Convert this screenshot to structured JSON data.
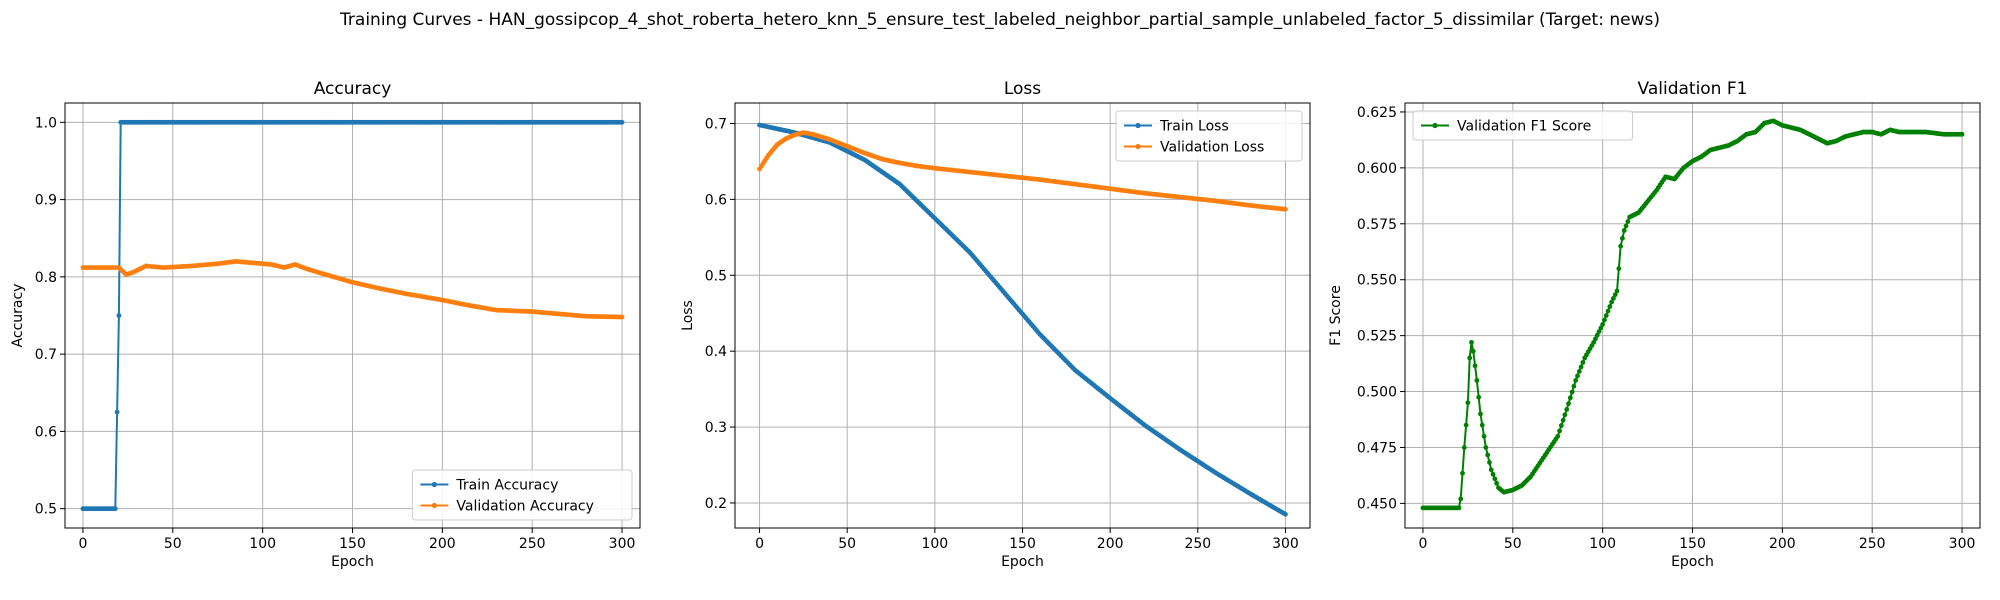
{
  "figure": {
    "suptitle": "Training Curves - HAN_gossipcop_4_shot_roberta_hetero_knn_5_ensure_test_labeled_neighbor_partial_sample_unlabeled_factor_5_dissimilar (Target: news)"
  },
  "colors": {
    "blue": "#1f77b4",
    "orange": "#ff7f0e",
    "green": "#008000",
    "grid": "#b0b0b0"
  },
  "chart_data": [
    {
      "type": "line",
      "title": "Accuracy",
      "xlabel": "Epoch",
      "ylabel": "Accuracy",
      "xlim": [
        -10,
        310
      ],
      "ylim": [
        0.475,
        1.025
      ],
      "xticks": [
        0,
        50,
        100,
        150,
        200,
        250,
        300
      ],
      "yticks": [
        0.5,
        0.6,
        0.7,
        0.8,
        0.9,
        1.0
      ],
      "ytick_labels": [
        "0.5",
        "0.6",
        "0.7",
        "0.8",
        "0.9",
        "1.0"
      ],
      "grid": true,
      "legend": "lower right",
      "series": [
        {
          "name": "Train Accuracy",
          "color": "#1f77b4",
          "points": [
            [
              0,
              0.5
            ],
            [
              18,
              0.5
            ],
            [
              19,
              0.625
            ],
            [
              20,
              0.75
            ],
            [
              21,
              1.0
            ],
            [
              300,
              1.0
            ]
          ]
        },
        {
          "name": "Validation Accuracy",
          "color": "#ff7f0e",
          "points": [
            [
              0,
              0.812
            ],
            [
              20,
              0.812
            ],
            [
              24,
              0.803
            ],
            [
              28,
              0.806
            ],
            [
              35,
              0.814
            ],
            [
              45,
              0.812
            ],
            [
              60,
              0.814
            ],
            [
              75,
              0.817
            ],
            [
              85,
              0.82
            ],
            [
              95,
              0.818
            ],
            [
              105,
              0.816
            ],
            [
              112,
              0.812
            ],
            [
              118,
              0.816
            ],
            [
              125,
              0.81
            ],
            [
              135,
              0.803
            ],
            [
              150,
              0.793
            ],
            [
              165,
              0.785
            ],
            [
              180,
              0.778
            ],
            [
              200,
              0.77
            ],
            [
              215,
              0.763
            ],
            [
              230,
              0.757
            ],
            [
              250,
              0.755
            ],
            [
              265,
              0.752
            ],
            [
              280,
              0.749
            ],
            [
              300,
              0.748
            ]
          ]
        }
      ]
    },
    {
      "type": "line",
      "title": "Loss",
      "xlabel": "Epoch",
      "ylabel": "Loss",
      "xlim": [
        -14,
        314
      ],
      "ylim": [
        0.167,
        0.727
      ],
      "xticks": [
        0,
        50,
        100,
        150,
        200,
        250,
        300
      ],
      "yticks": [
        0.2,
        0.3,
        0.4,
        0.5,
        0.6,
        0.7
      ],
      "ytick_labels": [
        "0.2",
        "0.3",
        "0.4",
        "0.5",
        "0.6",
        "0.7"
      ],
      "grid": true,
      "legend": "upper right",
      "series": [
        {
          "name": "Train Loss",
          "color": "#1f77b4",
          "points": [
            [
              0,
              0.698
            ],
            [
              20,
              0.688
            ],
            [
              40,
              0.675
            ],
            [
              60,
              0.652
            ],
            [
              80,
              0.62
            ],
            [
              100,
              0.575
            ],
            [
              120,
              0.53
            ],
            [
              140,
              0.476
            ],
            [
              160,
              0.422
            ],
            [
              180,
              0.375
            ],
            [
              200,
              0.338
            ],
            [
              220,
              0.302
            ],
            [
              240,
              0.27
            ],
            [
              260,
              0.24
            ],
            [
              280,
              0.212
            ],
            [
              300,
              0.185
            ]
          ]
        },
        {
          "name": "Validation Loss",
          "color": "#ff7f0e",
          "points": [
            [
              0,
              0.64
            ],
            [
              5,
              0.658
            ],
            [
              10,
              0.672
            ],
            [
              15,
              0.68
            ],
            [
              20,
              0.685
            ],
            [
              25,
              0.688
            ],
            [
              30,
              0.686
            ],
            [
              40,
              0.679
            ],
            [
              50,
              0.67
            ],
            [
              60,
              0.661
            ],
            [
              70,
              0.653
            ],
            [
              80,
              0.648
            ],
            [
              90,
              0.644
            ],
            [
              100,
              0.641
            ],
            [
              120,
              0.636
            ],
            [
              140,
              0.631
            ],
            [
              160,
              0.626
            ],
            [
              180,
              0.62
            ],
            [
              200,
              0.614
            ],
            [
              220,
              0.608
            ],
            [
              240,
              0.603
            ],
            [
              260,
              0.598
            ],
            [
              280,
              0.592
            ],
            [
              300,
              0.587
            ]
          ]
        }
      ]
    },
    {
      "type": "line",
      "title": "Validation F1",
      "xlabel": "Epoch",
      "ylabel": "F1 Score",
      "xlim": [
        -10,
        310
      ],
      "ylim": [
        0.439,
        0.629
      ],
      "xticks": [
        0,
        50,
        100,
        150,
        200,
        250,
        300
      ],
      "yticks": [
        0.45,
        0.475,
        0.5,
        0.525,
        0.55,
        0.575,
        0.6,
        0.625
      ],
      "ytick_labels": [
        "0.450",
        "0.475",
        "0.500",
        "0.525",
        "0.550",
        "0.575",
        "0.600",
        "0.625"
      ],
      "grid": true,
      "legend": "upper left",
      "series": [
        {
          "name": "Validation F1 Score",
          "color": "#008000",
          "points": [
            [
              0,
              0.448
            ],
            [
              20,
              0.448
            ],
            [
              21,
              0.452
            ],
            [
              23,
              0.475
            ],
            [
              25,
              0.495
            ],
            [
              26,
              0.515
            ],
            [
              27,
              0.522
            ],
            [
              28,
              0.518
            ],
            [
              30,
              0.505
            ],
            [
              32,
              0.49
            ],
            [
              35,
              0.475
            ],
            [
              38,
              0.465
            ],
            [
              42,
              0.457
            ],
            [
              45,
              0.455
            ],
            [
              50,
              0.456
            ],
            [
              55,
              0.458
            ],
            [
              60,
              0.462
            ],
            [
              65,
              0.468
            ],
            [
              70,
              0.474
            ],
            [
              75,
              0.48
            ],
            [
              80,
              0.492
            ],
            [
              85,
              0.505
            ],
            [
              90,
              0.515
            ],
            [
              95,
              0.522
            ],
            [
              100,
              0.53
            ],
            [
              105,
              0.54
            ],
            [
              108,
              0.545
            ],
            [
              110,
              0.565
            ],
            [
              112,
              0.572
            ],
            [
              115,
              0.578
            ],
            [
              120,
              0.58
            ],
            [
              125,
              0.585
            ],
            [
              130,
              0.59
            ],
            [
              135,
              0.596
            ],
            [
              140,
              0.595
            ],
            [
              145,
              0.6
            ],
            [
              150,
              0.603
            ],
            [
              155,
              0.605
            ],
            [
              160,
              0.608
            ],
            [
              165,
              0.609
            ],
            [
              170,
              0.61
            ],
            [
              175,
              0.612
            ],
            [
              180,
              0.615
            ],
            [
              185,
              0.616
            ],
            [
              190,
              0.62
            ],
            [
              195,
              0.621
            ],
            [
              200,
              0.619
            ],
            [
              205,
              0.618
            ],
            [
              210,
              0.617
            ],
            [
              215,
              0.615
            ],
            [
              220,
              0.613
            ],
            [
              225,
              0.611
            ],
            [
              230,
              0.612
            ],
            [
              235,
              0.614
            ],
            [
              240,
              0.615
            ],
            [
              245,
              0.616
            ],
            [
              250,
              0.616
            ],
            [
              255,
              0.615
            ],
            [
              260,
              0.617
            ],
            [
              265,
              0.616
            ],
            [
              270,
              0.616
            ],
            [
              280,
              0.616
            ],
            [
              290,
              0.615
            ],
            [
              300,
              0.615
            ]
          ]
        }
      ]
    }
  ]
}
